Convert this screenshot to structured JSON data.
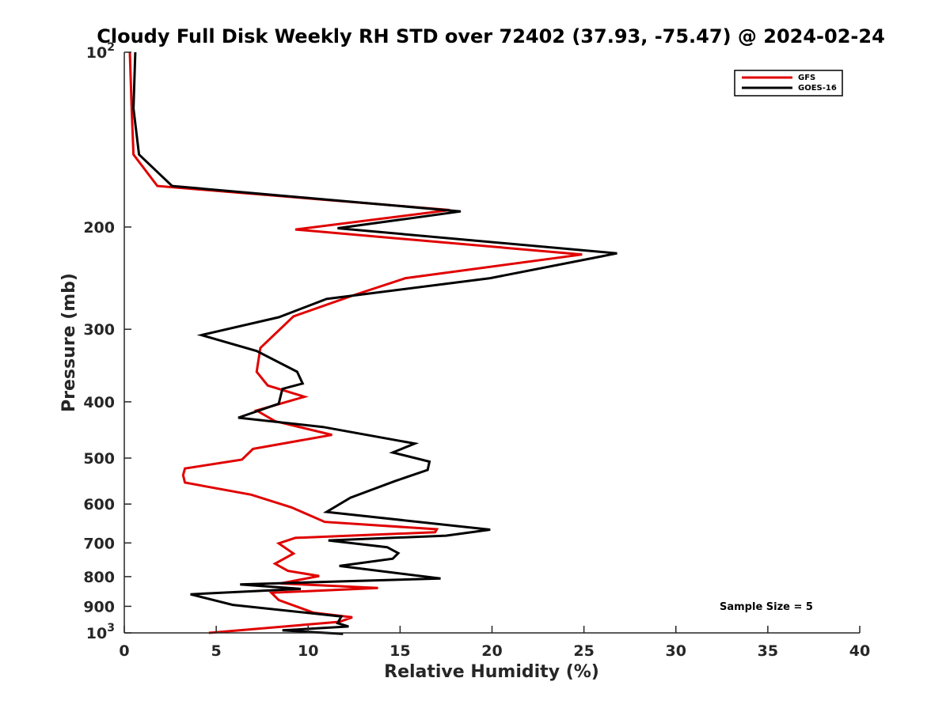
{
  "chart_data": {
    "type": "line",
    "title": "Cloudy Full Disk Weekly RH STD over 72402 (37.93, -75.47) @ 2024-02-24",
    "xlabel": "Relative Humidity (%)",
    "ylabel": "Pressure (mb)",
    "xlim": [
      0,
      40
    ],
    "ylim": [
      100,
      1000
    ],
    "y_scale": "log",
    "y_reversed": true,
    "grid": false,
    "legend_position": "top-right",
    "x_ticks": [
      0,
      5,
      10,
      15,
      20,
      25,
      30,
      35,
      40
    ],
    "x_tick_labels": [
      "0",
      "5",
      "10",
      "15",
      "20",
      "25",
      "30",
      "35",
      "40"
    ],
    "y_ticks": [
      100,
      200,
      300,
      400,
      500,
      600,
      700,
      800,
      900,
      1000
    ],
    "y_tick_labels": [
      {
        "base": "10",
        "sup": "2"
      },
      {
        "base": "200",
        "sup": ""
      },
      {
        "base": "300",
        "sup": ""
      },
      {
        "base": "400",
        "sup": ""
      },
      {
        "base": "500",
        "sup": ""
      },
      {
        "base": "600",
        "sup": ""
      },
      {
        "base": "700",
        "sup": ""
      },
      {
        "base": "800",
        "sup": ""
      },
      {
        "base": "900",
        "sup": ""
      },
      {
        "base": "10",
        "sup": "3"
      }
    ],
    "annotation": "Sample Size = 5",
    "series": [
      {
        "name": "GFS",
        "color": "#e00000",
        "points": [
          [
            0.3,
            100
          ],
          [
            0.4,
            125
          ],
          [
            0.5,
            150
          ],
          [
            1.8,
            170
          ],
          [
            17.7,
            187
          ],
          [
            9.3,
            202
          ],
          [
            24.9,
            223
          ],
          [
            15.3,
            245
          ],
          [
            12.5,
            262
          ],
          [
            9.2,
            285
          ],
          [
            7.4,
            323
          ],
          [
            7.2,
            355
          ],
          [
            7.8,
            375
          ],
          [
            9.8,
            392
          ],
          [
            7.2,
            414
          ],
          [
            8.2,
            432
          ],
          [
            11.3,
            456
          ],
          [
            7.0,
            482
          ],
          [
            6.4,
            503
          ],
          [
            3.3,
            521
          ],
          [
            3.2,
            535
          ],
          [
            3.3,
            551
          ],
          [
            6.9,
            578
          ],
          [
            9.1,
            608
          ],
          [
            10.9,
            644
          ],
          [
            17.0,
            663
          ],
          [
            16.9,
            671
          ],
          [
            9.3,
            686
          ],
          [
            8.4,
            701
          ],
          [
            9.2,
            730
          ],
          [
            8.2,
            760
          ],
          [
            8.9,
            782
          ],
          [
            10.6,
            798
          ],
          [
            8.5,
            822
          ],
          [
            13.8,
            837
          ],
          [
            8.0,
            853
          ],
          [
            8.4,
            878
          ],
          [
            10.3,
            923
          ],
          [
            12.4,
            940
          ],
          [
            11.7,
            957
          ],
          [
            4.6,
            1000
          ]
        ]
      },
      {
        "name": "GOES-16",
        "color": "#000000",
        "points": [
          [
            0.6,
            100
          ],
          [
            0.5,
            125
          ],
          [
            0.8,
            150
          ],
          [
            2.6,
            170
          ],
          [
            18.3,
            188
          ],
          [
            11.6,
            201
          ],
          [
            26.8,
            222
          ],
          [
            19.9,
            245
          ],
          [
            11.0,
            266
          ],
          [
            8.4,
            286
          ],
          [
            4.2,
            307
          ],
          [
            7.2,
            327
          ],
          [
            9.4,
            355
          ],
          [
            9.7,
            372
          ],
          [
            8.6,
            380
          ],
          [
            8.4,
            403
          ],
          [
            6.2,
            426
          ],
          [
            10.8,
            442
          ],
          [
            15.8,
            472
          ],
          [
            14.6,
            489
          ],
          [
            16.6,
            507
          ],
          [
            16.5,
            524
          ],
          [
            14.7,
            548
          ],
          [
            12.3,
            585
          ],
          [
            11.0,
            619
          ],
          [
            19.9,
            664
          ],
          [
            17.5,
            680
          ],
          [
            11.1,
            693
          ],
          [
            14.3,
            712
          ],
          [
            14.9,
            729
          ],
          [
            14.6,
            745
          ],
          [
            11.7,
            767
          ],
          [
            17.2,
            806
          ],
          [
            6.3,
            825
          ],
          [
            9.6,
            840
          ],
          [
            3.6,
            858
          ],
          [
            5.9,
            895
          ],
          [
            11.8,
            937
          ],
          [
            11.6,
            962
          ],
          [
            12.2,
            975
          ],
          [
            8.6,
            990
          ],
          [
            11.9,
            1004
          ]
        ]
      }
    ]
  }
}
